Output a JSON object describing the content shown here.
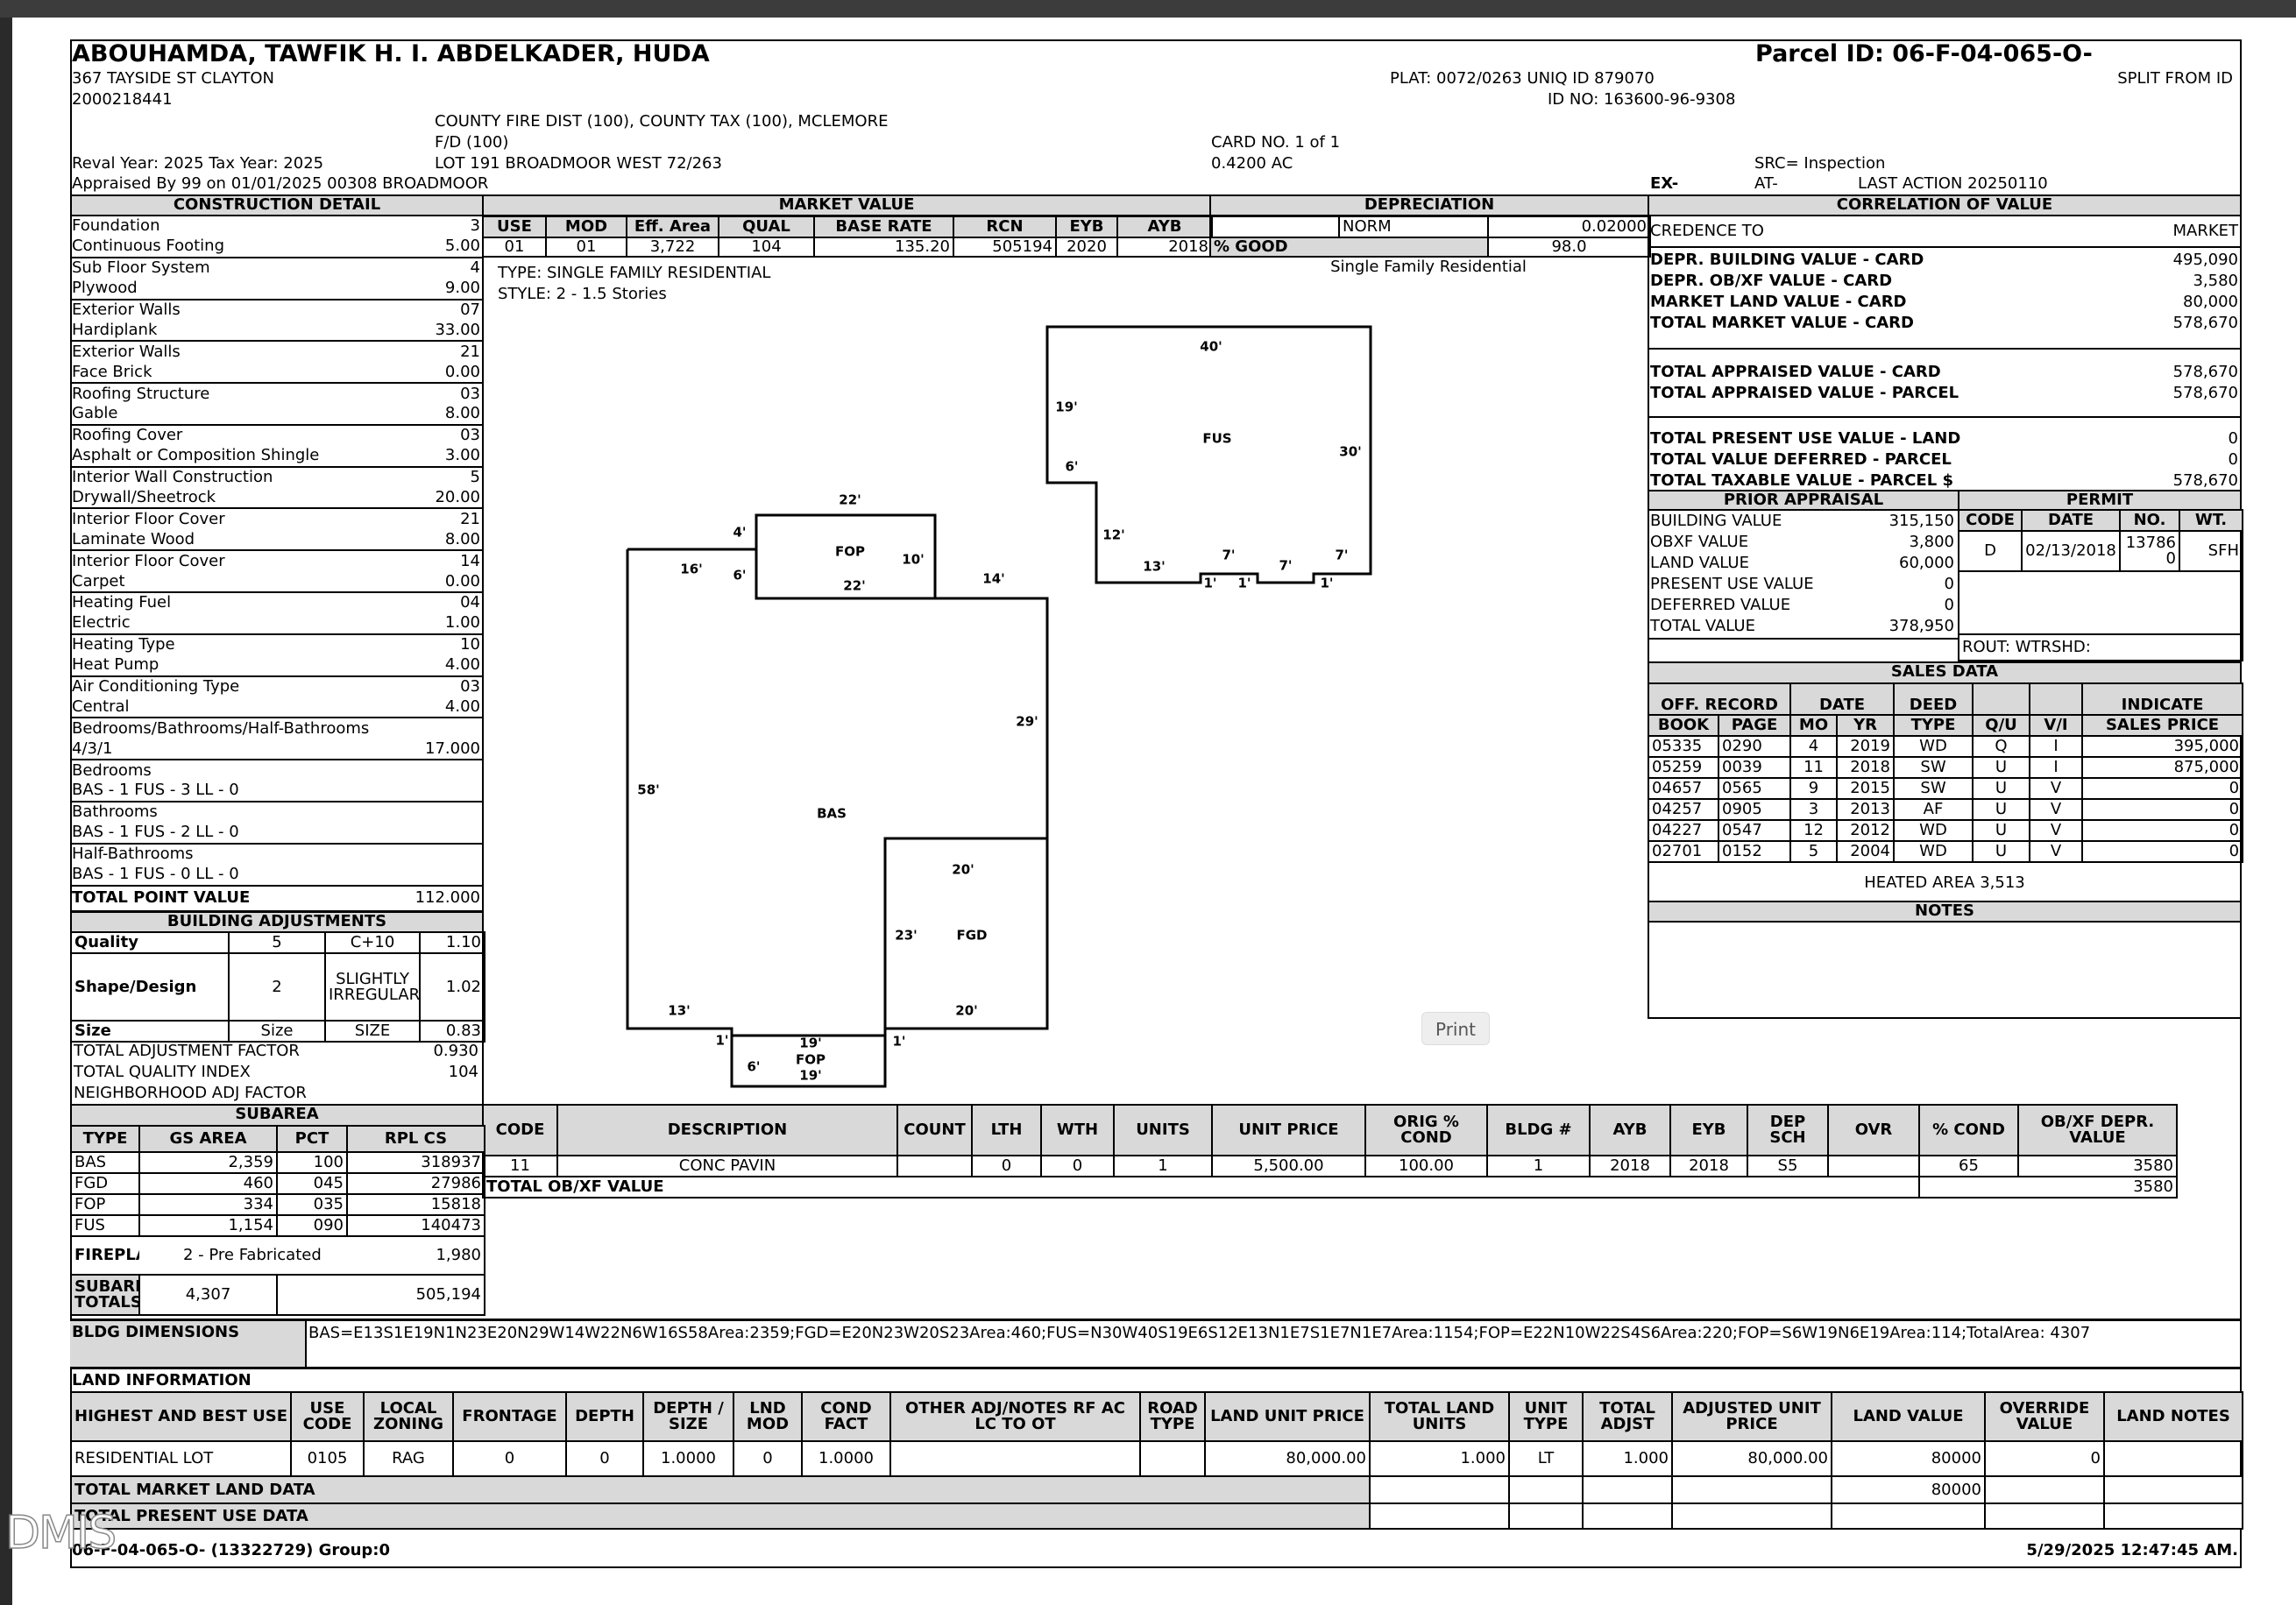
{
  "header": {
    "owner": "ABOUHAMDA, TAWFIK H. I.  ABDELKADER, HUDA",
    "address": "367 TAYSIDE ST CLAYTON",
    "account": "2000218441",
    "districts_1": "COUNTY FIRE DIST (100), COUNTY TAX (100), MCLEMORE",
    "districts_2": "F/D (100)",
    "reval": "Reval Year: 2025 Tax Year: 2025",
    "legal": "LOT 191 BROADMOOR WEST 72/263",
    "appraised": "Appraised By 99 on 01/01/2025 00308 BROADMOOR",
    "parcel_id": "Parcel ID: 06-F-04-065-O-",
    "plat": "PLAT: 0072/0263 UNIQ ID 879070",
    "split": "SPLIT FROM ID",
    "id_no": "ID NO: 163600-96-9308",
    "card_no": "CARD NO. 1 of 1",
    "acreage": "0.4200 AC",
    "src": "SRC= Inspection",
    "ex": "EX-",
    "at": "AT-",
    "last_action": "LAST ACTION 20250110"
  },
  "construction": {
    "title": "CONSTRUCTION DETAIL",
    "items": [
      [
        "Foundation",
        "3"
      ],
      [
        "Continuous Footing",
        "5.00"
      ],
      [
        "Sub Floor System",
        "4"
      ],
      [
        "Plywood",
        "9.00"
      ],
      [
        "Exterior Walls",
        "07"
      ],
      [
        "Hardiplank",
        "33.00"
      ],
      [
        "Exterior Walls",
        "21"
      ],
      [
        "Face Brick",
        "0.00"
      ],
      [
        "Roofing Structure",
        "03"
      ],
      [
        "Gable",
        "8.00"
      ],
      [
        "Roofing Cover",
        "03"
      ],
      [
        "Asphalt or Composition Shingle",
        "3.00"
      ],
      [
        "Interior Wall Construction",
        "5"
      ],
      [
        "Drywall/Sheetrock",
        "20.00"
      ],
      [
        "Interior Floor Cover",
        "21"
      ],
      [
        "Laminate Wood",
        "8.00"
      ],
      [
        "Interior Floor Cover",
        "14"
      ],
      [
        "Carpet",
        "0.00"
      ],
      [
        "Heating Fuel",
        "04"
      ],
      [
        "Electric",
        "1.00"
      ],
      [
        "Heating Type",
        "10"
      ],
      [
        "Heat Pump",
        "4.00"
      ],
      [
        "Air Conditioning Type",
        "03"
      ],
      [
        "Central",
        "4.00"
      ],
      [
        "Bedrooms/Bathrooms/Half-Bathrooms",
        ""
      ],
      [
        "4/3/1",
        "17.000"
      ],
      [
        "Bedrooms",
        ""
      ],
      [
        "BAS - 1 FUS - 3 LL - 0",
        ""
      ],
      [
        "Bathrooms",
        ""
      ],
      [
        "BAS - 1 FUS - 2 LL - 0",
        ""
      ],
      [
        "Half-Bathrooms",
        ""
      ],
      [
        "BAS - 1 FUS - 0 LL - 0",
        ""
      ]
    ],
    "total_label": "TOTAL POINT VALUE",
    "total_value": "112.000"
  },
  "adjustments": {
    "title": "BUILDING ADJUSTMENTS",
    "rows": [
      [
        "Quality",
        "5",
        "C+10",
        "1.10"
      ],
      [
        "Shape/Design",
        "2",
        "SLIGHTLY IRREGULAR",
        "1.02"
      ],
      [
        "Size",
        "Size",
        "SIZE",
        "0.83"
      ]
    ],
    "totals": [
      [
        "TOTAL ADJUSTMENT FACTOR",
        "0.930"
      ],
      [
        "TOTAL QUALITY INDEX",
        "104"
      ],
      [
        "NEIGHBORHOOD ADJ FACTOR",
        ""
      ]
    ]
  },
  "market": {
    "title": "MARKET VALUE",
    "headers": [
      "USE",
      "MOD",
      "Eff. Area",
      "QUAL",
      "BASE RATE",
      "RCN",
      "EYB",
      "AYB"
    ],
    "values": [
      "01",
      "01",
      "3,722",
      "104",
      "135.20",
      "505194",
      "2020",
      "2018"
    ],
    "type_line": "TYPE: SINGLE FAMILY RESIDENTIAL",
    "style_line": "STYLE: 2 - 1.5 Stories"
  },
  "depreciation": {
    "title": "DEPRECIATION",
    "method": "NORM",
    "rate": "0.02000",
    "good_label": "% GOOD",
    "good_value": "98.0",
    "description": "Single Family Residential"
  },
  "correlation": {
    "title": "CORRELATION OF VALUE",
    "credence_label": "CREDENCE TO",
    "credence_value": "MARKET",
    "rows": [
      [
        "DEPR. BUILDING VALUE - CARD",
        "495,090"
      ],
      [
        "DEPR. OB/XF VALUE - CARD",
        "3,580"
      ],
      [
        "MARKET LAND VALUE - CARD",
        "80,000"
      ],
      [
        " TOTAL MARKET VALUE - CARD",
        "578,670"
      ],
      [
        "TOTAL APPRAISED VALUE - CARD",
        "578,670"
      ],
      [
        "TOTAL APPRAISED VALUE - PARCEL",
        "578,670"
      ],
      [
        "TOTAL PRESENT USE VALUE - LAND",
        "0"
      ],
      [
        "TOTAL VALUE DEFERRED - PARCEL",
        "0"
      ],
      [
        "TOTAL TAXABLE VALUE - PARCEL   $",
        "578,670"
      ]
    ]
  },
  "prior": {
    "title": "PRIOR APPRAISAL",
    "rows": [
      [
        "BUILDING VALUE",
        "315,150"
      ],
      [
        "OBXF VALUE",
        "3,800"
      ],
      [
        "LAND VALUE",
        "60,000"
      ],
      [
        "PRESENT USE VALUE",
        "0"
      ],
      [
        "DEFERRED VALUE",
        "0"
      ],
      [
        "TOTAL VALUE",
        "378,950"
      ]
    ]
  },
  "permit": {
    "title": "PERMIT",
    "headers": [
      "CODE",
      "DATE",
      "NO.",
      "WT."
    ],
    "row": [
      "D",
      "02/13/2018",
      "137860",
      "SFH"
    ],
    "rout": "ROUT: WTRSHD:"
  },
  "sales": {
    "title": "SALES DATA",
    "group_off": "OFF. RECORD",
    "group_date": "DATE",
    "deed": "DEED",
    "indicate": "INDICATE",
    "headers": [
      "BOOK",
      "PAGE",
      "MO",
      "YR",
      "TYPE",
      "Q/U",
      "V/I",
      "SALES PRICE"
    ],
    "rows": [
      [
        "05335",
        "0290",
        "4",
        "2019",
        "WD",
        "Q",
        "I",
        "395,000"
      ],
      [
        "05259",
        "0039",
        "11",
        "2018",
        "SW",
        "U",
        "I",
        "875,000"
      ],
      [
        "04657",
        "0565",
        "9",
        "2015",
        "SW",
        "U",
        "V",
        "0"
      ],
      [
        "04257",
        "0905",
        "3",
        "2013",
        "AF",
        "U",
        "V",
        "0"
      ],
      [
        "04227",
        "0547",
        "12",
        "2012",
        "WD",
        "U",
        "V",
        "0"
      ],
      [
        "02701",
        "0152",
        "5",
        "2004",
        "WD",
        "U",
        "V",
        "0"
      ]
    ],
    "heated_area": "HEATED AREA 3,513",
    "notes_title": "NOTES"
  },
  "obxf": {
    "headers": [
      "CODE",
      "DESCRIPTION",
      "COUNT",
      "LTH",
      "WTH",
      "UNITS",
      "UNIT PRICE",
      "ORIG % COND",
      "BLDG #",
      "AYB",
      "EYB",
      "DEP SCH",
      "OVR",
      "% COND",
      "OB/XF DEPR. VALUE"
    ],
    "row": [
      "11",
      "CONC PAVIN",
      "",
      "0",
      "0",
      "1",
      "5,500.00",
      "100.00",
      "1",
      "2018",
      "2018",
      "S5",
      "",
      "65",
      "3580"
    ],
    "total_label": "TOTAL OB/XF VALUE",
    "total_value": "3580"
  },
  "subarea": {
    "title": "SUBAREA",
    "headers": [
      "TYPE",
      "GS AREA",
      "PCT",
      "RPL CS"
    ],
    "rows": [
      [
        "BAS",
        "2,359",
        "100",
        "318937"
      ],
      [
        "FGD",
        "460",
        "045",
        "27986"
      ],
      [
        "FOP",
        "334",
        "035",
        "15818"
      ],
      [
        "FUS",
        "1,154",
        "090",
        "140473"
      ]
    ],
    "fireplace_label": "FIREPLACE",
    "fireplace_desc": "2 - Pre Fabricated",
    "fireplace_value": "1,980",
    "totals_label": "SUBAREA TOTALS",
    "totals_area": "4,307",
    "totals_value": "505,194"
  },
  "bldg_dims": {
    "label": "BLDG DIMENSIONS",
    "text": "BAS=E13S1E19N1N23E20N29W14W22N6W16S58Area:2359;FGD=E20N23W20S23Area:460;FUS=N30W40S19E6S12E13N1E7S1E7N1E7Area:1154;FOP=E22N10W22S4S6Area:220;FOP=S6W19N6E19Area:114;TotalArea: 4307"
  },
  "land": {
    "title": "LAND INFORMATION",
    "headers": [
      "HIGHEST AND BEST USE",
      "USE CODE",
      "LOCAL ZONING",
      "FRONTAGE",
      "DEPTH",
      "DEPTH / SIZE",
      "LND MOD",
      "COND FACT",
      "OTHER ADJ/NOTES RF AC LC TO OT",
      "ROAD TYPE",
      "LAND UNIT PRICE",
      "TOTAL LAND UNITS",
      "UNIT TYPE",
      "TOTAL ADJST",
      "ADJUSTED UNIT PRICE",
      "LAND VALUE",
      "OVERRIDE VALUE",
      "LAND NOTES"
    ],
    "row": [
      "RESIDENTIAL LOT",
      "0105",
      "RAG",
      "0",
      "0",
      "1.0000",
      "0",
      "1.0000",
      "",
      "",
      "80,000.00",
      "1.000",
      "LT",
      "1.000",
      "80,000.00",
      "80000",
      "0",
      ""
    ],
    "total_market_label": "TOTAL MARKET LAND DATA",
    "total_market_value": "80000",
    "total_present_label": "TOTAL PRESENT USE DATA"
  },
  "sketch": {
    "labels": [
      [
        "40'",
        1382,
        396
      ],
      [
        "19'",
        1217,
        465
      ],
      [
        "FUS",
        1389,
        501
      ],
      [
        "30'",
        1541,
        516
      ],
      [
        "6'",
        1223,
        533
      ],
      [
        "12'",
        1271,
        611
      ],
      [
        "13'",
        1317,
        647
      ],
      [
        "7'",
        1402,
        634
      ],
      [
        "7'",
        1467,
        646
      ],
      [
        "7'",
        1531,
        634
      ],
      [
        "1'",
        1381,
        666
      ],
      [
        "1'",
        1420,
        666
      ],
      [
        "1'",
        1514,
        666
      ],
      [
        "22'",
        970,
        571
      ],
      [
        "4'",
        844,
        608
      ],
      [
        "FOP",
        970,
        630
      ],
      [
        "10'",
        1042,
        639
      ],
      [
        "16'",
        789,
        650
      ],
      [
        "6'",
        844,
        657
      ],
      [
        "22'",
        975,
        669
      ],
      [
        "14'",
        1134,
        661
      ],
      [
        "29'",
        1172,
        824
      ],
      [
        "58'",
        740,
        902
      ],
      [
        "BAS",
        949,
        929
      ],
      [
        "20'",
        1099,
        993
      ],
      [
        "23'",
        1034,
        1068
      ],
      [
        "FGD",
        1109,
        1068
      ],
      [
        "13'",
        775,
        1154
      ],
      [
        "20'",
        1103,
        1154
      ],
      [
        "1'",
        824,
        1188
      ],
      [
        "1'",
        1026,
        1189
      ],
      [
        "19'",
        925,
        1191
      ],
      [
        "FOP",
        925,
        1210
      ],
      [
        "6'",
        860,
        1218
      ],
      [
        "19'",
        925,
        1228
      ]
    ]
  },
  "print_button": "Print",
  "watermark": "DMIS",
  "footer": {
    "left": "06-F-04-065-O- (13322729) Group:0",
    "right": "5/29/2025 12:47:45 AM."
  }
}
